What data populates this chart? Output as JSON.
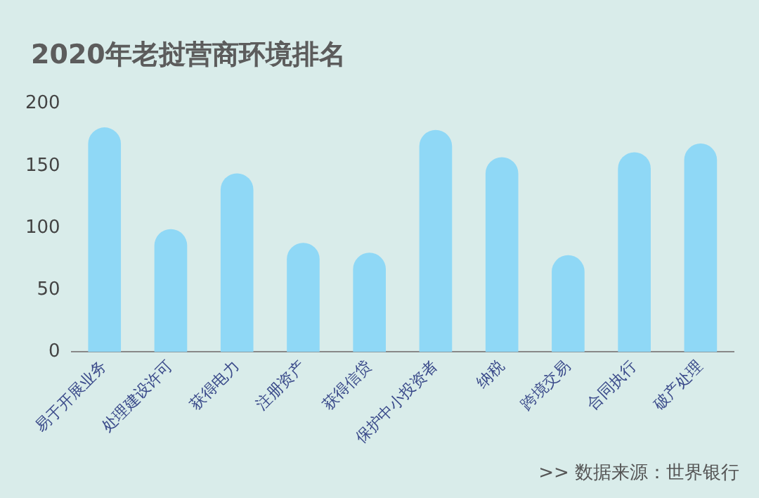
{
  "chart_data": {
    "type": "bar",
    "title": "2020年老挝营商环境排名",
    "categories": [
      "易于开展业务",
      "处理建设许可",
      "获得电力",
      "注册资产",
      "获得信贷",
      "保护中小投资者",
      "纳税",
      "跨境交易",
      "合同执行",
      "破产处理"
    ],
    "values": [
      181,
      99,
      144,
      88,
      80,
      179,
      157,
      78,
      161,
      168
    ],
    "color": "#8fd8f6",
    "ylim": [
      0,
      200
    ],
    "yticks": [
      0,
      50,
      100,
      150,
      200
    ],
    "annotations": [
      ">>  数据来源：世界银行"
    ]
  }
}
